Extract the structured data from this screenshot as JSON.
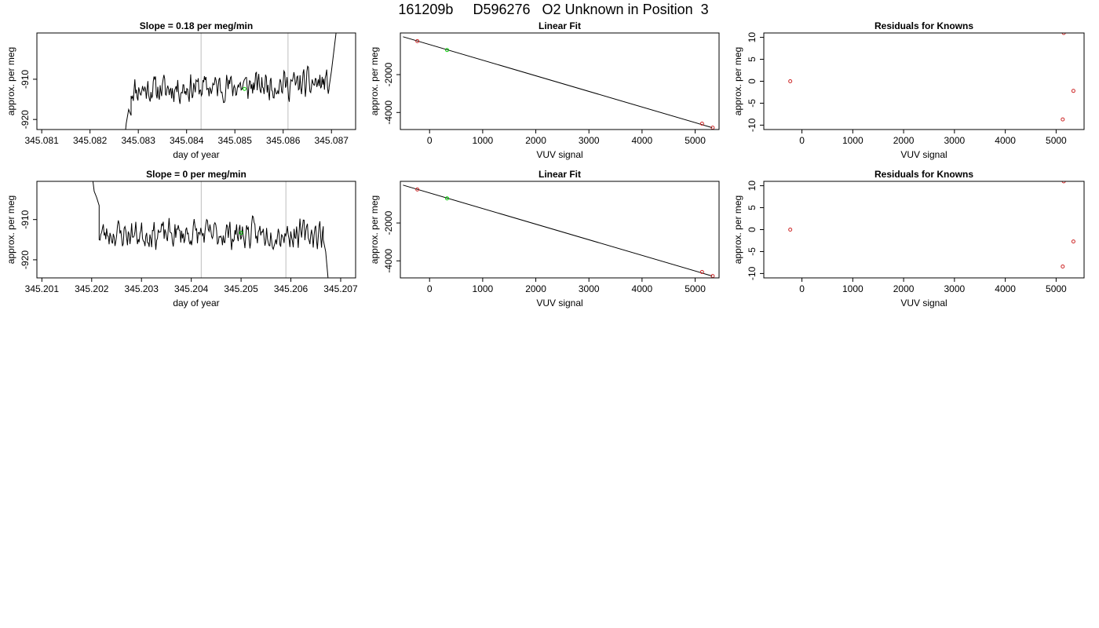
{
  "main_title": "161209b     D596276   O2 Unknown in Position  3",
  "colors": {
    "series": "#000000",
    "known": "#cd2626",
    "unknown": "#00cd00",
    "vline": "#bebebe"
  },
  "chart_data": [
    {
      "id": "slope-1",
      "type": "line",
      "title": "Slope =  0.18  per meg/min",
      "xlabel": "day of year",
      "ylabel": "approx. per meg",
      "xlim": [
        345.0809,
        345.0875
      ],
      "ylim": [
        -922.5,
        -898.5
      ],
      "xticks": [
        345.081,
        345.082,
        345.083,
        345.084,
        345.085,
        345.086,
        345.087
      ],
      "xtick_labels": [
        "345.081",
        "345.082",
        "345.083",
        "345.084",
        "345.085",
        "345.086",
        "345.087"
      ],
      "yticks": [
        -910,
        -920
      ],
      "ytick_labels": [
        "-910",
        "-920"
      ],
      "vlines": [
        345.0843,
        345.0861
      ],
      "x_start": 345.0827,
      "x_end": 345.0871,
      "n_points": 260,
      "baseline": -911.8,
      "trend": 0.9,
      "seed": 11,
      "head": [
        [
          345.0827,
          -927
        ],
        [
          345.08275,
          -921
        ],
        [
          345.0828,
          -917.5
        ],
        [
          345.08285,
          -919
        ]
      ],
      "tail": [
        [
          345.08695,
          -912
        ],
        [
          345.087,
          -908
        ],
        [
          345.08705,
          -903
        ],
        [
          345.0871,
          -898
        ]
      ],
      "marker": {
        "x": 345.0852,
        "y": -912.4
      }
    },
    {
      "id": "linfit-1",
      "type": "scatter",
      "title": "Linear Fit",
      "xlabel": "VUV signal",
      "ylabel": "approx. per meg",
      "xlim": [
        -550,
        5450
      ],
      "ylim": [
        -4900,
        200
      ],
      "xticks": [
        0,
        1000,
        2000,
        3000,
        4000,
        5000
      ],
      "xtick_labels": [
        "0",
        "1000",
        "2000",
        "3000",
        "4000",
        "5000"
      ],
      "yticks": [
        -2000,
        -4000
      ],
      "ytick_labels": [
        "-2000",
        "-4000"
      ],
      "fit_line": [
        [
          -500,
          0
        ],
        [
          5320,
          -4800
        ]
      ],
      "knowns": [
        [
          -230,
          -230
        ],
        [
          5130,
          -4590
        ],
        [
          5330,
          -4800
        ]
      ],
      "unknowns": [
        [
          330,
          -700
        ]
      ]
    },
    {
      "id": "resid-1",
      "type": "scatter",
      "title": "Residuals for Knowns",
      "xlabel": "VUV signal",
      "ylabel": "approx. per meg",
      "xlim": [
        -750,
        5550
      ],
      "ylim": [
        -11,
        11
      ],
      "xticks": [
        0,
        1000,
        2000,
        3000,
        4000,
        5000
      ],
      "xtick_labels": [
        "0",
        "1000",
        "2000",
        "3000",
        "4000",
        "5000"
      ],
      "yticks": [
        10,
        5,
        0,
        -5,
        -10
      ],
      "ytick_labels": [
        "10",
        "5",
        "0",
        "-5",
        "-10"
      ],
      "knowns": [
        [
          -230,
          0
        ],
        [
          5150,
          11
        ],
        [
          5340,
          -2.2
        ],
        [
          5130,
          -8.7
        ]
      ]
    },
    {
      "id": "slope-2",
      "type": "line",
      "title": "Slope =  0  per meg/min",
      "xlabel": "day of year",
      "ylabel": "approx. per meg",
      "xlim": [
        345.2009,
        345.2073
      ],
      "ylim": [
        -924.5,
        -900.5
      ],
      "xticks": [
        345.201,
        345.202,
        345.203,
        345.204,
        345.205,
        345.206,
        345.207
      ],
      "xtick_labels": [
        "345.201",
        "345.202",
        "345.203",
        "345.204",
        "345.205",
        "345.206",
        "345.207"
      ],
      "yticks": [
        -910,
        -920
      ],
      "ytick_labels": [
        "-910",
        "-920"
      ],
      "vlines": [
        345.2042,
        345.2059
      ],
      "x_start": 345.2021,
      "x_end": 345.2067,
      "n_points": 270,
      "baseline": -913.6,
      "trend": 0,
      "seed": 23,
      "head": [
        [
          345.202,
          -898
        ],
        [
          345.20205,
          -903
        ],
        [
          345.2021,
          -904.5
        ],
        [
          345.20215,
          -906.5
        ]
      ],
      "tail": [
        [
          345.20665,
          -915
        ],
        [
          345.2067,
          -918
        ],
        [
          345.20675,
          -925
        ]
      ],
      "marker": {
        "x": 345.205,
        "y": -913.3
      }
    },
    {
      "id": "linfit-2",
      "type": "scatter",
      "title": "Linear Fit",
      "xlabel": "VUV signal",
      "ylabel": "approx. per meg",
      "xlim": [
        -550,
        5450
      ],
      "ylim": [
        -4900,
        200
      ],
      "xticks": [
        0,
        1000,
        2000,
        3000,
        4000,
        5000
      ],
      "xtick_labels": [
        "0",
        "1000",
        "2000",
        "3000",
        "4000",
        "5000"
      ],
      "yticks": [
        -2000,
        -4000
      ],
      "ytick_labels": [
        "-2000",
        "-4000"
      ],
      "fit_line": [
        [
          -500,
          0
        ],
        [
          5320,
          -4800
        ]
      ],
      "knowns": [
        [
          -230,
          -230
        ],
        [
          5130,
          -4590
        ],
        [
          5330,
          -4800
        ]
      ],
      "unknowns": [
        [
          330,
          -700
        ]
      ]
    },
    {
      "id": "resid-2",
      "type": "scatter",
      "title": "Residuals for Knowns",
      "xlabel": "VUV signal",
      "ylabel": "approx. per meg",
      "xlim": [
        -750,
        5550
      ],
      "ylim": [
        -11,
        11
      ],
      "xticks": [
        0,
        1000,
        2000,
        3000,
        4000,
        5000
      ],
      "xtick_labels": [
        "0",
        "1000",
        "2000",
        "3000",
        "4000",
        "5000"
      ],
      "yticks": [
        10,
        5,
        0,
        -5,
        -10
      ],
      "ytick_labels": [
        "10",
        "5",
        "0",
        "-5",
        "-10"
      ],
      "knowns": [
        [
          -230,
          0
        ],
        [
          5150,
          11
        ],
        [
          5340,
          -2.7
        ],
        [
          5130,
          -8.4
        ]
      ]
    }
  ]
}
